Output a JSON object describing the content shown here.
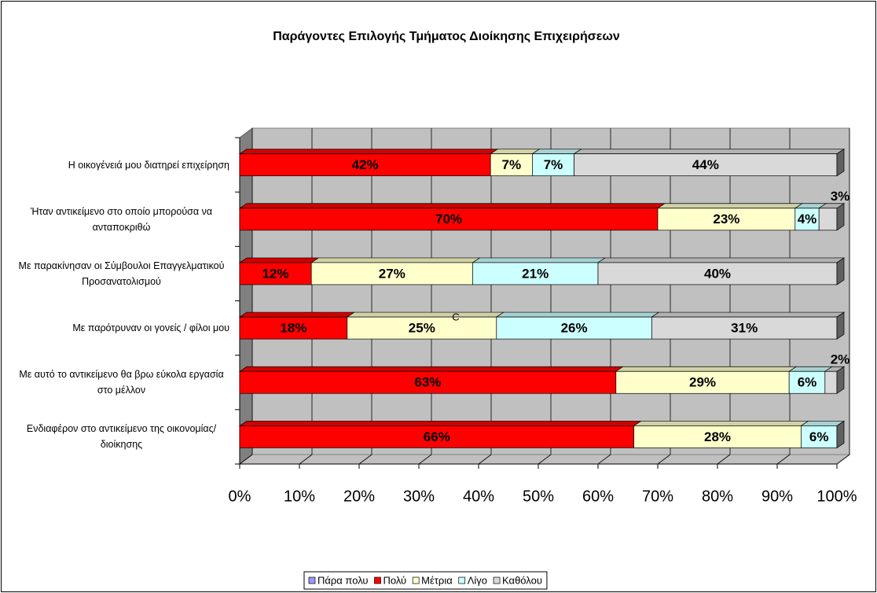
{
  "chart_data": {
    "type": "bar",
    "orientation": "horizontal",
    "stacked": true,
    "title": "Παράγοντες Επιλογής  Τμήματος Διοίκησης Επιχειρήσεων",
    "categories": [
      "Η οικογένειά μου διατηρεί επιχείρηση",
      "Ήταν αντικείμενο στο οποίο μπορούσα να ανταποκριθώ",
      "Με παρακίνησαν οι Σύμβουλοι Επαγγελματικού Προσανατολισμού",
      "Με παρότρυναν οι γονείς / φίλοι μου",
      "Με αυτό το αντικείμενο θα βρω εύκολα εργασία στο μέλλον",
      "Ενδιαφέρον στο αντικείμενο της οικονομίας/ διοίκησης"
    ],
    "series": [
      {
        "name": "Πάρα πολυ",
        "color": "#9999ff",
        "values": [
          0,
          0,
          0,
          0,
          0,
          0
        ]
      },
      {
        "name": "Πολύ",
        "color": "#ff0000",
        "values": [
          42,
          70,
          12,
          18,
          63,
          66
        ],
        "value_labels": [
          "42%",
          "70%",
          "12%",
          "18%",
          "63%",
          "66%"
        ]
      },
      {
        "name": "Μέτρια",
        "color": "#ffffcc",
        "values": [
          7,
          23,
          27,
          25,
          29,
          28
        ],
        "value_labels": [
          "7%",
          "23%",
          "27%",
          "25%",
          "29%",
          "28%"
        ]
      },
      {
        "name": "Λίγο",
        "color": "#ccffff",
        "values": [
          7,
          4,
          21,
          26,
          6,
          6
        ],
        "value_labels": [
          "7%",
          "4%",
          "21%",
          "26%",
          "6%",
          "6%"
        ]
      },
      {
        "name": "Καθόλου",
        "color": "#d9d9d9",
        "values": [
          44,
          3,
          40,
          31,
          2,
          0
        ],
        "value_labels": [
          "44%",
          "3%",
          "40%",
          "31%",
          "2%",
          null
        ]
      }
    ],
    "annotation": "C",
    "xlim": [
      0,
      100
    ],
    "xticks": [
      {
        "value": 0,
        "label": "0%"
      },
      {
        "value": 10,
        "label": "10%"
      },
      {
        "value": 20,
        "label": "20%"
      },
      {
        "value": 30,
        "label": "30%"
      },
      {
        "value": 40,
        "label": "40%"
      },
      {
        "value": 50,
        "label": "50%"
      },
      {
        "value": 60,
        "label": "60%"
      },
      {
        "value": 70,
        "label": "70%"
      },
      {
        "value": 80,
        "label": "80%"
      },
      {
        "value": 90,
        "label": "90%"
      },
      {
        "value": 100,
        "label": "100%"
      }
    ],
    "grid": true,
    "legend": "bottom"
  }
}
